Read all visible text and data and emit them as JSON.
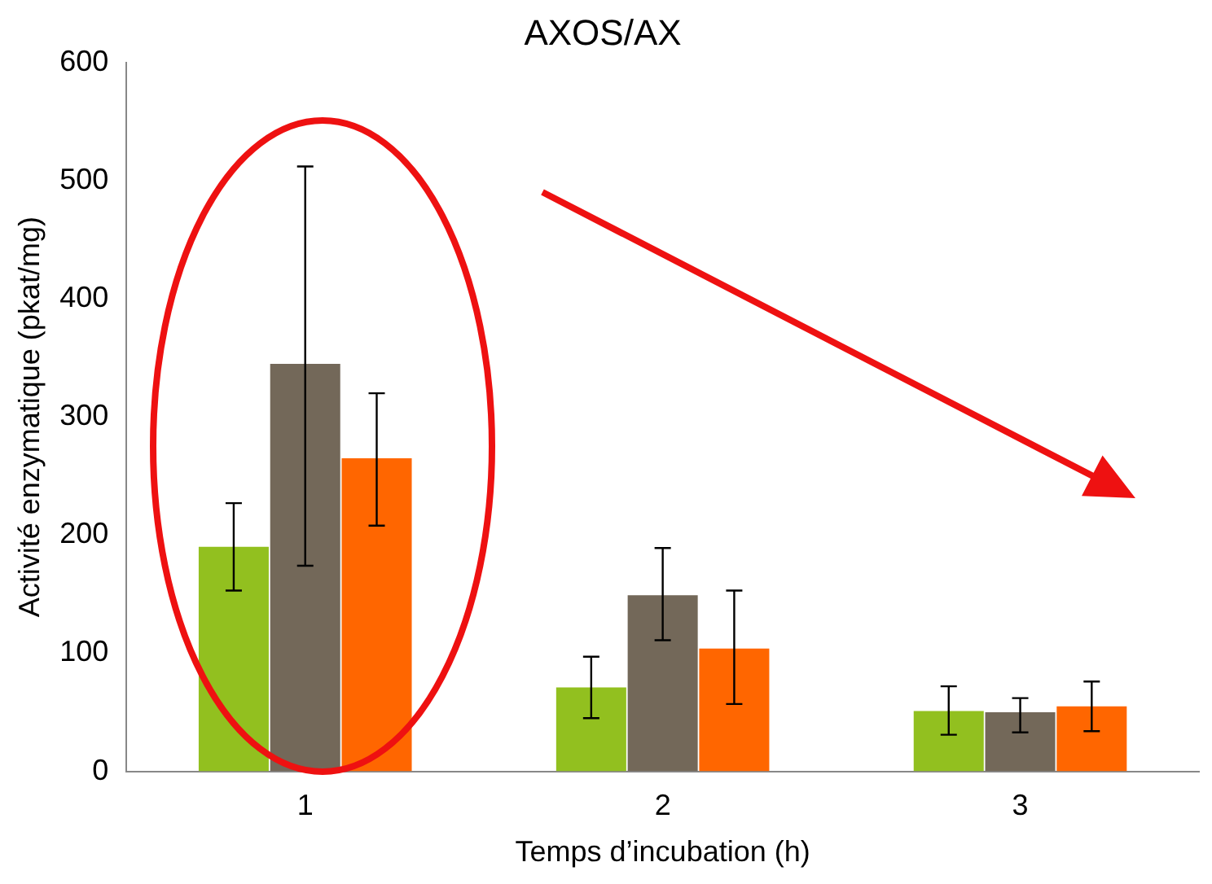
{
  "chart_data": {
    "type": "bar",
    "title": "AXOS/AX",
    "xlabel": "Temps d’incubation (h)",
    "ylabel": "Activité enzymatique (pkat/mg)",
    "categories": [
      "1",
      "2",
      "3"
    ],
    "series": [
      {
        "color": "#92c01f",
        "values": [
          190,
          71,
          51
        ],
        "errors": [
          [
            153,
            227
          ],
          [
            45,
            97
          ],
          [
            31,
            72
          ]
        ]
      },
      {
        "color": "#736859",
        "values": [
          345,
          149,
          50
        ],
        "errors": [
          [
            174,
            512
          ],
          [
            111,
            189
          ],
          [
            33,
            62
          ]
        ]
      },
      {
        "color": "#ff6600",
        "values": [
          265,
          104,
          55
        ],
        "errors": [
          [
            208,
            320
          ],
          [
            57,
            153
          ],
          [
            34,
            76
          ]
        ]
      }
    ],
    "ylim": [
      0,
      600
    ],
    "yticks": [
      0,
      100,
      200,
      300,
      400,
      500,
      600
    ],
    "grid": false,
    "legend": false
  }
}
